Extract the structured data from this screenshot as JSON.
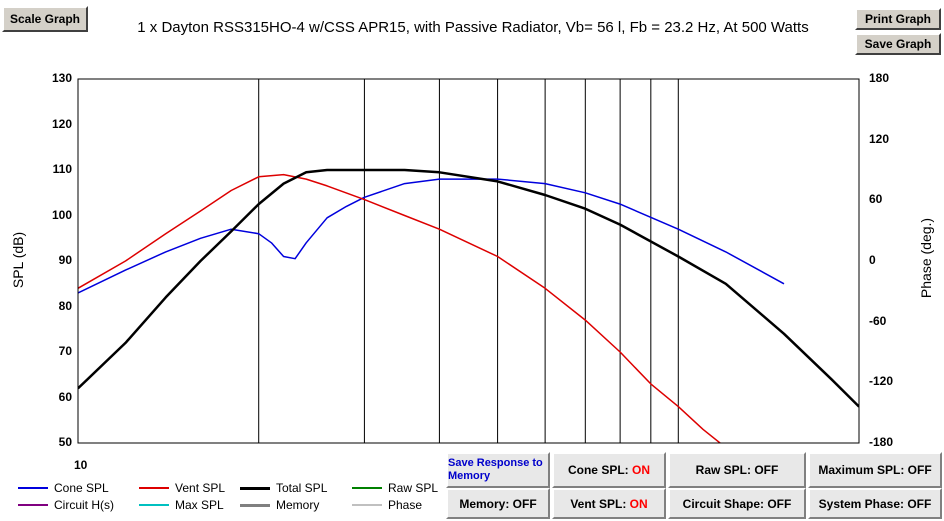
{
  "buttons": {
    "scale_graph": "Scale Graph",
    "print_graph": "Print Graph",
    "save_graph": "Save Graph"
  },
  "chart_data": {
    "type": "line",
    "title": "1 x Dayton RSS315HO-4 w/CSS APR15,  with Passive Radiator, Vb= 56 l,  Fb = 23.2 Hz,  At 500 Watts",
    "xlabel": "",
    "ylabel": "SPL (dB)",
    "y2label": "Phase (deg.)",
    "x_scale": "log",
    "xlim": [
      10,
      200
    ],
    "ylim": [
      50,
      130
    ],
    "y2lim": [
      -180,
      180
    ],
    "x_tick_labels": [
      "10"
    ],
    "y_ticks": [
      "130",
      "120",
      "110",
      "100",
      "90",
      "80",
      "70",
      "60",
      "50"
    ],
    "y2_ticks": [
      "180",
      "120",
      "60",
      "0",
      "-60",
      "-120",
      "-180"
    ],
    "grid": true,
    "series": [
      {
        "name": "Cone SPL",
        "color": "#0000dd",
        "x": [
          10,
          12,
          14,
          16,
          18,
          20,
          21,
          22,
          23,
          24,
          26,
          28,
          30,
          35,
          40,
          50,
          60,
          70,
          80,
          100,
          120,
          150
        ],
        "values": [
          83,
          88,
          92,
          95,
          97,
          96,
          94,
          91,
          90.5,
          94,
          99.5,
          102,
          104,
          107,
          108,
          108,
          107,
          105,
          102.5,
          97,
          92,
          85
        ]
      },
      {
        "name": "Vent SPL",
        "color": "#dd0000",
        "x": [
          10,
          12,
          14,
          16,
          18,
          20,
          22,
          24,
          26,
          30,
          35,
          40,
          50,
          60,
          70,
          80,
          90,
          100,
          110,
          120
        ],
        "values": [
          84,
          90,
          96,
          101,
          105.5,
          108.5,
          109,
          108,
          106.5,
          103.5,
          100,
          97,
          91,
          84,
          77,
          70,
          63,
          58,
          53,
          49
        ]
      },
      {
        "name": "Total SPL",
        "color": "#000000",
        "x": [
          10,
          12,
          14,
          16,
          18,
          20,
          22,
          24,
          26,
          30,
          35,
          40,
          50,
          60,
          70,
          80,
          100,
          120,
          150,
          180,
          200
        ],
        "values": [
          62,
          72,
          82,
          90,
          96.5,
          102.5,
          107,
          109.5,
          110,
          110,
          110,
          109.5,
          107.5,
          104.5,
          101.5,
          98,
          91,
          85,
          74,
          64,
          58
        ]
      }
    ],
    "legend": [
      "Cone SPL",
      "Vent SPL",
      "Total SPL",
      "Raw SPL",
      "Circuit H(s)",
      "Max SPL",
      "Memory",
      "Phase"
    ],
    "legend_colors": [
      "#0000dd",
      "#dd0000",
      "#000000",
      "#008000",
      "#800080",
      "#00c0c0",
      "#808080",
      "#c0c0c0"
    ]
  },
  "controls": {
    "save_response": "Save Response to Memory",
    "memory": "Memory: OFF",
    "cone_spl_label": "Cone SPL:",
    "cone_spl_value": "ON",
    "vent_spl_label": "Vent SPL:",
    "vent_spl_value": "ON",
    "raw_spl": "Raw SPL: OFF",
    "circuit_shape": "Circuit Shape: OFF",
    "maximum_spl": "Maximum SPL: OFF",
    "system_phase": "System Phase: OFF"
  }
}
